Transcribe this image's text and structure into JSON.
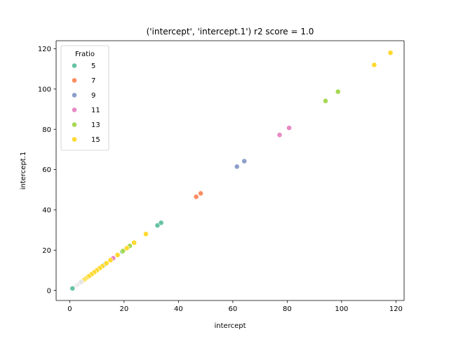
{
  "chart_data": {
    "type": "scatter",
    "title": "('intercept', 'intercept.1') r2 score = 1.0",
    "xlabel": "intercept",
    "ylabel": "intercept.1",
    "xlim": [
      -5,
      123
    ],
    "ylim": [
      -5,
      124
    ],
    "xticks": [
      0,
      20,
      40,
      60,
      80,
      100,
      120
    ],
    "yticks": [
      0,
      20,
      40,
      60,
      80,
      100,
      120
    ],
    "xtick_labels": [
      "0",
      "20",
      "40",
      "60",
      "80",
      "100",
      "120"
    ],
    "ytick_labels": [
      "0",
      "20",
      "40",
      "60",
      "80",
      "100",
      "120"
    ],
    "grid": false,
    "legend": {
      "title": "Fratio",
      "placement": "top-left",
      "entries": [
        "5",
        "7",
        "9",
        "11",
        "13",
        "15"
      ]
    },
    "series": [
      {
        "name": "5",
        "color": "#66c2a5",
        "x": [
          1.0,
          32.3,
          33.6,
          19.3,
          12.5
        ],
        "y": [
          1.0,
          32.3,
          33.6,
          19.3,
          12.5
        ]
      },
      {
        "name": "7",
        "color": "#fc8d62",
        "x": [
          46.5,
          48.2,
          15.5
        ],
        "y": [
          46.5,
          48.2,
          15.5
        ]
      },
      {
        "name": "9",
        "color": "#8da0cb",
        "x": [
          61.5,
          64.2,
          9.0
        ],
        "y": [
          61.5,
          64.2,
          9.0
        ]
      },
      {
        "name": "11",
        "color": "#e78ac3",
        "x": [
          77.2,
          80.7,
          16.0
        ],
        "y": [
          77.2,
          80.7,
          16.0
        ]
      },
      {
        "name": "13",
        "color": "#a6d854",
        "x": [
          94.1,
          98.7,
          22.1,
          19.6
        ],
        "y": [
          94.1,
          98.7,
          22.1,
          19.6
        ]
      },
      {
        "name": "15",
        "color": "#ffd92f",
        "x": [
          112.0,
          118.0,
          28.0,
          23.7,
          21.0,
          17.6,
          15.0,
          13.5,
          12.0,
          11.0,
          10.0,
          9.0,
          8.0,
          7.0,
          6.0,
          5.5,
          5.0,
          4.5
        ],
        "y": [
          112.0,
          118.0,
          28.0,
          23.7,
          21.0,
          17.6,
          15.0,
          13.5,
          12.0,
          11.0,
          10.0,
          9.0,
          8.0,
          7.0,
          6.0,
          5.5,
          5.0,
          4.5
        ]
      },
      {
        "name": "",
        "color": "#e6e6e6",
        "x": [
          2.6,
          3.0,
          3.4,
          3.8,
          4.2
        ],
        "y": [
          2.6,
          3.0,
          3.4,
          3.8,
          4.2
        ]
      }
    ]
  }
}
